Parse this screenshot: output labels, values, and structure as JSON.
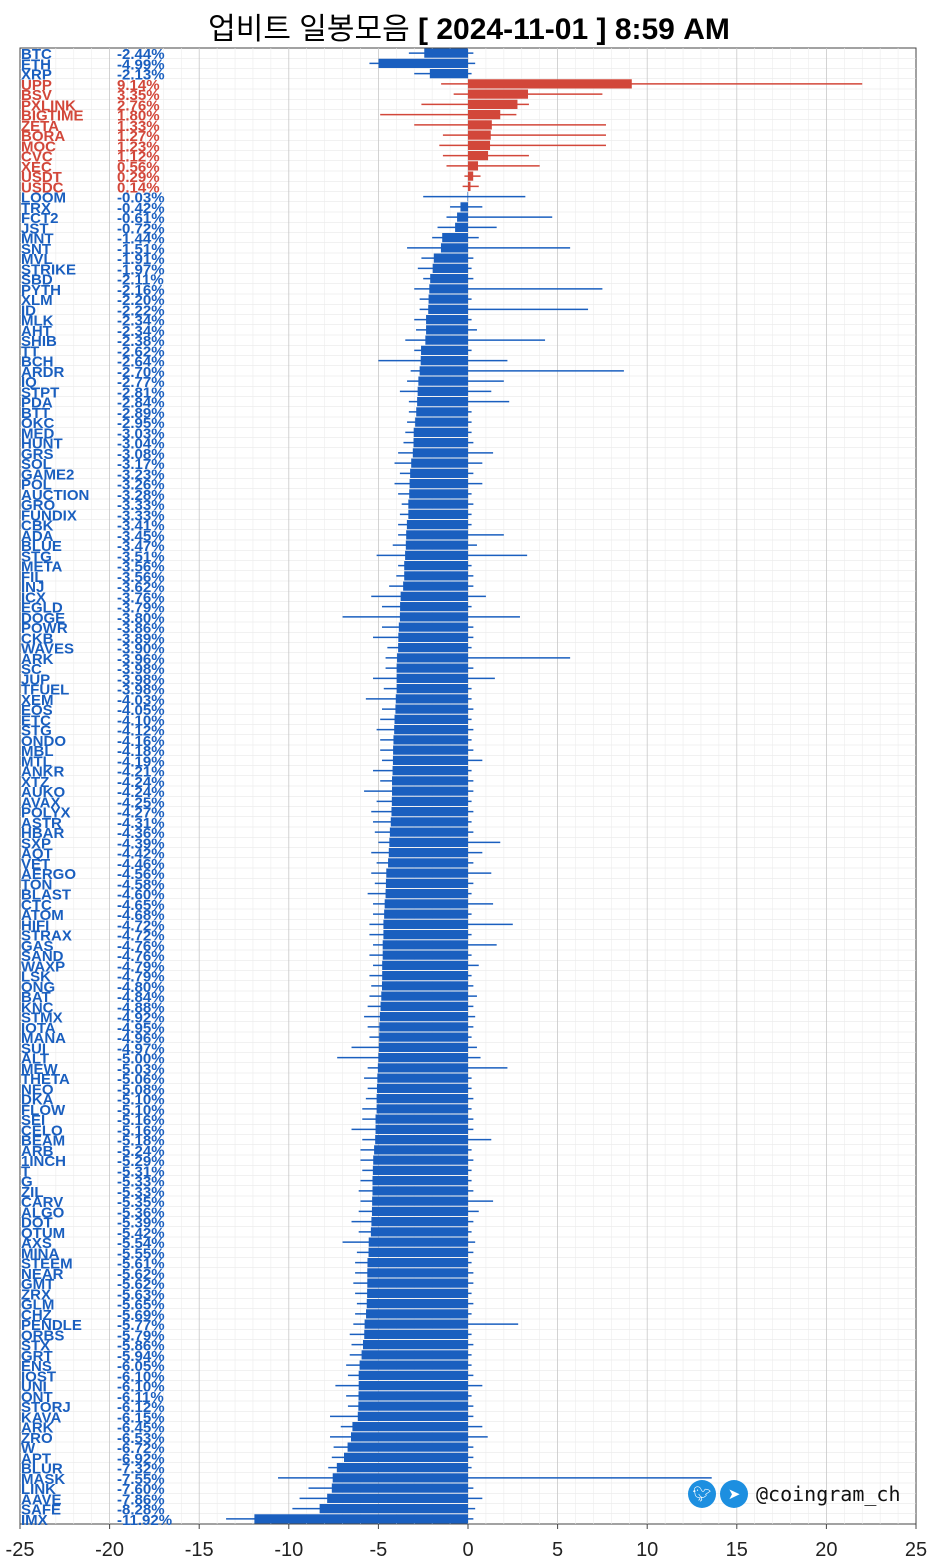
{
  "title": {
    "prefix": "업비트 일봉모음",
    "date": "[ 2024-11-01 ]  8:59 AM"
  },
  "watermark": {
    "handle": "@coingram_ch",
    "icons": [
      "twitter-icon",
      "telegram-icon"
    ]
  },
  "colors": {
    "down": "#1a5fbf",
    "up": "#d2473a"
  },
  "chart_data": {
    "type": "bar",
    "orientation": "horizontal",
    "xlim": [
      -25,
      25
    ],
    "xticks": [
      -25,
      -20,
      -15,
      -10,
      -5,
      0,
      5,
      10,
      15,
      20,
      25
    ],
    "grid": true,
    "rows": [
      {
        "name": "BTC",
        "pct": "-2.44%",
        "value": -2.44,
        "low": -3.3,
        "high": 0.3
      },
      {
        "name": "ETH",
        "pct": "-4.99%",
        "value": -4.99,
        "low": -5.5,
        "high": 0.4
      },
      {
        "name": "XRP",
        "pct": "-2.13%",
        "value": -2.13,
        "low": -3.0,
        "high": 0.2
      },
      {
        "name": "UPP",
        "pct": "9.14%",
        "value": 9.14,
        "low": -1.5,
        "high": 22.0
      },
      {
        "name": "BSV",
        "pct": "3.35%",
        "value": 3.35,
        "low": -0.8,
        "high": 7.5
      },
      {
        "name": "PXLINK",
        "pct": "2.76%",
        "value": 2.76,
        "low": -2.6,
        "high": 3.4
      },
      {
        "name": "BIGTIME",
        "pct": "1.80%",
        "value": 1.8,
        "low": -4.9,
        "high": 2.7
      },
      {
        "name": "ZETA",
        "pct": "1.33%",
        "value": 1.33,
        "low": -3.0,
        "high": 7.7
      },
      {
        "name": "BORA",
        "pct": "1.27%",
        "value": 1.27,
        "low": -1.4,
        "high": 7.7
      },
      {
        "name": "MOC",
        "pct": "1.23%",
        "value": 1.23,
        "low": -1.6,
        "high": 7.7
      },
      {
        "name": "CVC",
        "pct": "1.12%",
        "value": 1.12,
        "low": -1.4,
        "high": 3.4
      },
      {
        "name": "XEC",
        "pct": "0.56%",
        "value": 0.56,
        "low": -1.2,
        "high": 4.0
      },
      {
        "name": "USDT",
        "pct": "0.29%",
        "value": 0.29,
        "low": -0.2,
        "high": 0.7
      },
      {
        "name": "USDC",
        "pct": "0.14%",
        "value": 0.14,
        "low": -0.3,
        "high": 0.6
      },
      {
        "name": "LOOM",
        "pct": "-0.03%",
        "value": -0.03,
        "low": -2.5,
        "high": 3.2
      },
      {
        "name": "TRX",
        "pct": "-0.42%",
        "value": -0.42,
        "low": -1.0,
        "high": 0.8
      },
      {
        "name": "FCT2",
        "pct": "-0.61%",
        "value": -0.61,
        "low": -1.2,
        "high": 4.7
      },
      {
        "name": "JST",
        "pct": "-0.72%",
        "value": -0.72,
        "low": -1.7,
        "high": 1.6
      },
      {
        "name": "MNT",
        "pct": "-1.44%",
        "value": -1.44,
        "low": -2.0,
        "high": 0.6
      },
      {
        "name": "SNT",
        "pct": "-1.51%",
        "value": -1.51,
        "low": -3.4,
        "high": 5.7
      },
      {
        "name": "MVL",
        "pct": "-1.91%",
        "value": -1.91,
        "low": -2.6,
        "high": 0.3
      },
      {
        "name": "STRIKE",
        "pct": "-1.97%",
        "value": -1.97,
        "low": -2.8,
        "high": 0.2
      },
      {
        "name": "SBD",
        "pct": "-2.11%",
        "value": -2.11,
        "low": -2.5,
        "high": 0.3
      },
      {
        "name": "PYTH",
        "pct": "-2.16%",
        "value": -2.16,
        "low": -3.0,
        "high": 7.5
      },
      {
        "name": "XLM",
        "pct": "-2.20%",
        "value": -2.2,
        "low": -2.7,
        "high": 0.2
      },
      {
        "name": "ID",
        "pct": "-2.22%",
        "value": -2.22,
        "low": -2.7,
        "high": 6.7
      },
      {
        "name": "MLK",
        "pct": "-2.34%",
        "value": -2.34,
        "low": -3.0,
        "high": 0.2
      },
      {
        "name": "AHT",
        "pct": "-2.34%",
        "value": -2.34,
        "low": -2.9,
        "high": 0.5
      },
      {
        "name": "SHIB",
        "pct": "-2.38%",
        "value": -2.38,
        "low": -3.5,
        "high": 4.3
      },
      {
        "name": "TT",
        "pct": "-2.62%",
        "value": -2.62,
        "low": -3.0,
        "high": 0.2
      },
      {
        "name": "BCH",
        "pct": "-2.64%",
        "value": -2.64,
        "low": -5.0,
        "high": 2.2
      },
      {
        "name": "ARDR",
        "pct": "-2.70%",
        "value": -2.7,
        "low": -3.2,
        "high": 8.7
      },
      {
        "name": "IQ",
        "pct": "-2.77%",
        "value": -2.77,
        "low": -3.4,
        "high": 2.0
      },
      {
        "name": "STPT",
        "pct": "-2.81%",
        "value": -2.81,
        "low": -3.8,
        "high": 1.3
      },
      {
        "name": "PDA",
        "pct": "-2.84%",
        "value": -2.84,
        "low": -3.3,
        "high": 2.3
      },
      {
        "name": "BTT",
        "pct": "-2.89%",
        "value": -2.89,
        "low": -3.3,
        "high": 0.2
      },
      {
        "name": "OKC",
        "pct": "-2.95%",
        "value": -2.95,
        "low": -3.4,
        "high": 0.2
      },
      {
        "name": "MED",
        "pct": "-3.03%",
        "value": -3.03,
        "low": -3.5,
        "high": 0.2
      },
      {
        "name": "HUNT",
        "pct": "-3.04%",
        "value": -3.04,
        "low": -3.6,
        "high": 0.3
      },
      {
        "name": "GRS",
        "pct": "-3.08%",
        "value": -3.08,
        "low": -3.9,
        "high": 1.4
      },
      {
        "name": "SOL",
        "pct": "-3.17%",
        "value": -3.17,
        "low": -4.1,
        "high": 0.8
      },
      {
        "name": "GAME2",
        "pct": "-3.23%",
        "value": -3.23,
        "low": -3.8,
        "high": 0.3
      },
      {
        "name": "POL",
        "pct": "-3.26%",
        "value": -3.26,
        "low": -4.1,
        "high": 0.8
      },
      {
        "name": "AUCTION",
        "pct": "-3.28%",
        "value": -3.28,
        "low": -3.9,
        "high": 0.2
      },
      {
        "name": "GRO",
        "pct": "-3.33%",
        "value": -3.33,
        "low": -3.7,
        "high": 0.3
      },
      {
        "name": "FUNDIX",
        "pct": "-3.33%",
        "value": -3.33,
        "low": -3.8,
        "high": 0.2
      },
      {
        "name": "CBK",
        "pct": "-3.41%",
        "value": -3.41,
        "low": -3.9,
        "high": 0.2
      },
      {
        "name": "ADA",
        "pct": "-3.45%",
        "value": -3.45,
        "low": -3.9,
        "high": 2.0
      },
      {
        "name": "BLUE",
        "pct": "-3.47%",
        "value": -3.47,
        "low": -4.2,
        "high": 0.5
      },
      {
        "name": "STG",
        "pct": "-3.51%",
        "value": -3.51,
        "low": -5.1,
        "high": 3.3
      },
      {
        "name": "META",
        "pct": "-3.56%",
        "value": -3.56,
        "low": -3.9,
        "high": 0.2
      },
      {
        "name": "FIL",
        "pct": "-3.56%",
        "value": -3.56,
        "low": -4.0,
        "high": 0.3
      },
      {
        "name": "INJ",
        "pct": "-3.62%",
        "value": -3.62,
        "low": -4.4,
        "high": 0.3
      },
      {
        "name": "ICX",
        "pct": "-3.76%",
        "value": -3.76,
        "low": -5.4,
        "high": 1.0
      },
      {
        "name": "EGLD",
        "pct": "-3.79%",
        "value": -3.79,
        "low": -4.8,
        "high": 0.2
      },
      {
        "name": "DOGE",
        "pct": "-3.80%",
        "value": -3.8,
        "low": -7.0,
        "high": 2.9
      },
      {
        "name": "POWR",
        "pct": "-3.86%",
        "value": -3.86,
        "low": -4.8,
        "high": 0.3
      },
      {
        "name": "CKB",
        "pct": "-3.89%",
        "value": -3.89,
        "low": -5.3,
        "high": 0.3
      },
      {
        "name": "WAVES",
        "pct": "-3.90%",
        "value": -3.9,
        "low": -4.5,
        "high": 0.2
      },
      {
        "name": "ARK",
        "pct": "-3.96%",
        "value": -3.96,
        "low": -4.6,
        "high": 5.7
      },
      {
        "name": "SC",
        "pct": "-3.98%",
        "value": -3.98,
        "low": -4.6,
        "high": 0.3
      },
      {
        "name": "JUP",
        "pct": "-3.98%",
        "value": -3.98,
        "low": -5.3,
        "high": 1.5
      },
      {
        "name": "TFUEL",
        "pct": "-3.98%",
        "value": -3.98,
        "low": -4.7,
        "high": 0.2
      },
      {
        "name": "XEM",
        "pct": "-4.03%",
        "value": -4.03,
        "low": -5.7,
        "high": 0.2
      },
      {
        "name": "EOS",
        "pct": "-4.05%",
        "value": -4.05,
        "low": -4.8,
        "high": 0.3
      },
      {
        "name": "ETC",
        "pct": "-4.10%",
        "value": -4.1,
        "low": -4.9,
        "high": 0.2
      },
      {
        "name": "STG",
        "pct": "-4.12%",
        "value": -4.12,
        "low": -5.1,
        "high": 0.3
      },
      {
        "name": "ONDO",
        "pct": "-4.16%",
        "value": -4.16,
        "low": -4.9,
        "high": 0.2
      },
      {
        "name": "MBL",
        "pct": "-4.18%",
        "value": -4.18,
        "low": -4.9,
        "high": 0.3
      },
      {
        "name": "MTL",
        "pct": "-4.19%",
        "value": -4.19,
        "low": -4.8,
        "high": 0.8
      },
      {
        "name": "ANKR",
        "pct": "-4.21%",
        "value": -4.21,
        "low": -5.3,
        "high": 0.2
      },
      {
        "name": "XTZ",
        "pct": "-4.24%",
        "value": -4.24,
        "low": -4.9,
        "high": 0.3
      },
      {
        "name": "AUKO",
        "pct": "-4.24%",
        "value": -4.24,
        "low": -5.8,
        "high": 0.3
      },
      {
        "name": "AVAX",
        "pct": "-4.25%",
        "value": -4.25,
        "low": -5.1,
        "high": 0.2
      },
      {
        "name": "POLYX",
        "pct": "-4.27%",
        "value": -4.27,
        "low": -5.4,
        "high": 0.3
      },
      {
        "name": "ASTR",
        "pct": "-4.31%",
        "value": -4.31,
        "low": -5.3,
        "high": 0.2
      },
      {
        "name": "HBAR",
        "pct": "-4.36%",
        "value": -4.36,
        "low": -5.2,
        "high": 0.3
      },
      {
        "name": "SXP",
        "pct": "-4.39%",
        "value": -4.39,
        "low": -5.0,
        "high": 1.8
      },
      {
        "name": "AQT",
        "pct": "-4.42%",
        "value": -4.42,
        "low": -5.4,
        "high": 0.8
      },
      {
        "name": "VET",
        "pct": "-4.46%",
        "value": -4.46,
        "low": -5.1,
        "high": 0.3
      },
      {
        "name": "AERGO",
        "pct": "-4.56%",
        "value": -4.56,
        "low": -5.4,
        "high": 1.3
      },
      {
        "name": "TON",
        "pct": "-4.58%",
        "value": -4.58,
        "low": -5.2,
        "high": 0.3
      },
      {
        "name": "BLAST",
        "pct": "-4.60%",
        "value": -4.6,
        "low": -5.6,
        "high": 0.2
      },
      {
        "name": "CTC",
        "pct": "-4.65%",
        "value": -4.65,
        "low": -5.3,
        "high": 1.4
      },
      {
        "name": "ATOM",
        "pct": "-4.68%",
        "value": -4.68,
        "low": -5.3,
        "high": 0.2
      },
      {
        "name": "HIFI",
        "pct": "-4.72%",
        "value": -4.72,
        "low": -5.5,
        "high": 2.5
      },
      {
        "name": "STRAX",
        "pct": "-4.72%",
        "value": -4.72,
        "low": -5.5,
        "high": 0.2
      },
      {
        "name": "GAS",
        "pct": "-4.76%",
        "value": -4.76,
        "low": -5.3,
        "high": 1.6
      },
      {
        "name": "SAND",
        "pct": "-4.76%",
        "value": -4.76,
        "low": -5.5,
        "high": 0.2
      },
      {
        "name": "WAXP",
        "pct": "-4.79%",
        "value": -4.79,
        "low": -5.3,
        "high": 0.6
      },
      {
        "name": "LSK",
        "pct": "-4.79%",
        "value": -4.79,
        "low": -5.5,
        "high": 0.2
      },
      {
        "name": "ONG",
        "pct": "-4.80%",
        "value": -4.8,
        "low": -5.4,
        "high": 0.3
      },
      {
        "name": "BAT",
        "pct": "-4.84%",
        "value": -4.84,
        "low": -5.5,
        "high": 0.5
      },
      {
        "name": "KNC",
        "pct": "-4.88%",
        "value": -4.88,
        "low": -5.6,
        "high": 0.3
      },
      {
        "name": "STMX",
        "pct": "-4.92%",
        "value": -4.92,
        "low": -5.8,
        "high": 0.4
      },
      {
        "name": "IOTA",
        "pct": "-4.95%",
        "value": -4.95,
        "low": -5.6,
        "high": 0.3
      },
      {
        "name": "MANA",
        "pct": "-4.96%",
        "value": -4.96,
        "low": -5.5,
        "high": 0.2
      },
      {
        "name": "SUI",
        "pct": "-4.97%",
        "value": -4.97,
        "low": -6.5,
        "high": 0.5
      },
      {
        "name": "ALT",
        "pct": "-5.00%",
        "value": -5.0,
        "low": -7.3,
        "high": 0.7
      },
      {
        "name": "MEW",
        "pct": "-5.03%",
        "value": -5.03,
        "low": -5.6,
        "high": 2.2
      },
      {
        "name": "THETA",
        "pct": "-5.06%",
        "value": -5.06,
        "low": -5.8,
        "high": 0.2
      },
      {
        "name": "NEO",
        "pct": "-5.08%",
        "value": -5.08,
        "low": -5.6,
        "high": 0.2
      },
      {
        "name": "DKA",
        "pct": "-5.10%",
        "value": -5.1,
        "low": -5.7,
        "high": 0.3
      },
      {
        "name": "FLOW",
        "pct": "-5.10%",
        "value": -5.1,
        "low": -5.9,
        "high": 0.2
      },
      {
        "name": "SEI",
        "pct": "-5.16%",
        "value": -5.16,
        "low": -5.9,
        "high": 0.3
      },
      {
        "name": "CELO",
        "pct": "-5.16%",
        "value": -5.16,
        "low": -6.5,
        "high": 0.3
      },
      {
        "name": "BEAM",
        "pct": "-5.18%",
        "value": -5.18,
        "low": -5.9,
        "high": 1.3
      },
      {
        "name": "ARB",
        "pct": "-5.24%",
        "value": -5.24,
        "low": -6.0,
        "high": 0.2
      },
      {
        "name": "1INCH",
        "pct": "-5.29%",
        "value": -5.29,
        "low": -6.0,
        "high": 0.3
      },
      {
        "name": "T",
        "pct": "-5.31%",
        "value": -5.31,
        "low": -5.9,
        "high": 0.2
      },
      {
        "name": "G",
        "pct": "-5.33%",
        "value": -5.33,
        "low": -6.0,
        "high": 0.2
      },
      {
        "name": "ZIL",
        "pct": "-5.33%",
        "value": -5.33,
        "low": -6.1,
        "high": 0.3
      },
      {
        "name": "CARV",
        "pct": "-5.35%",
        "value": -5.35,
        "low": -6.0,
        "high": 1.4
      },
      {
        "name": "ALGO",
        "pct": "-5.36%",
        "value": -5.36,
        "low": -6.1,
        "high": 0.6
      },
      {
        "name": "DOT",
        "pct": "-5.39%",
        "value": -5.39,
        "low": -6.5,
        "high": 0.3
      },
      {
        "name": "QTUM",
        "pct": "-5.42%",
        "value": -5.42,
        "low": -6.1,
        "high": 0.2
      },
      {
        "name": "AXS",
        "pct": "-5.54%",
        "value": -5.54,
        "low": -7.0,
        "high": 0.4
      },
      {
        "name": "MINA",
        "pct": "-5.55%",
        "value": -5.55,
        "low": -6.2,
        "high": 0.3
      },
      {
        "name": "STEEM",
        "pct": "-5.61%",
        "value": -5.61,
        "low": -6.3,
        "high": 0.2
      },
      {
        "name": "NEAR",
        "pct": "-5.62%",
        "value": -5.62,
        "low": -6.3,
        "high": 0.3
      },
      {
        "name": "GMT",
        "pct": "-5.62%",
        "value": -5.62,
        "low": -6.4,
        "high": 0.3
      },
      {
        "name": "ZRX",
        "pct": "-5.63%",
        "value": -5.63,
        "low": -6.3,
        "high": 0.2
      },
      {
        "name": "GLM",
        "pct": "-5.65%",
        "value": -5.65,
        "low": -6.2,
        "high": 0.3
      },
      {
        "name": "CHZ",
        "pct": "-5.69%",
        "value": -5.69,
        "low": -6.3,
        "high": 0.2
      },
      {
        "name": "PENDLE",
        "pct": "-5.77%",
        "value": -5.77,
        "low": -6.4,
        "high": 2.8
      },
      {
        "name": "ORBS",
        "pct": "-5.79%",
        "value": -5.79,
        "low": -6.6,
        "high": 0.2
      },
      {
        "name": "STX",
        "pct": "-5.86%",
        "value": -5.86,
        "low": -6.5,
        "high": 0.3
      },
      {
        "name": "GRT",
        "pct": "-5.94%",
        "value": -5.94,
        "low": -6.6,
        "high": 0.2
      },
      {
        "name": "ENS",
        "pct": "-6.05%",
        "value": -6.05,
        "low": -6.8,
        "high": 0.2
      },
      {
        "name": "IOST",
        "pct": "-6.10%",
        "value": -6.1,
        "low": -6.7,
        "high": 0.3
      },
      {
        "name": "UNI",
        "pct": "-6.10%",
        "value": -6.1,
        "low": -7.4,
        "high": 0.8
      },
      {
        "name": "ONT",
        "pct": "-6.11%",
        "value": -6.11,
        "low": -6.8,
        "high": 0.2
      },
      {
        "name": "STORJ",
        "pct": "-6.12%",
        "value": -6.12,
        "low": -6.7,
        "high": 0.3
      },
      {
        "name": "KAVA",
        "pct": "-6.15%",
        "value": -6.15,
        "low": -7.7,
        "high": 0.3
      },
      {
        "name": "ARK",
        "pct": "-6.45%",
        "value": -6.45,
        "low": -7.1,
        "high": 0.8
      },
      {
        "name": "ZRO",
        "pct": "-6.53%",
        "value": -6.53,
        "low": -7.7,
        "high": 1.1
      },
      {
        "name": "W",
        "pct": "-6.72%",
        "value": -6.72,
        "low": -7.5,
        "high": 0.3
      },
      {
        "name": "APT",
        "pct": "-6.92%",
        "value": -6.92,
        "low": -7.6,
        "high": 0.3
      },
      {
        "name": "BLUR",
        "pct": "-7.32%",
        "value": -7.32,
        "low": -7.8,
        "high": 0.2
      },
      {
        "name": "MASK",
        "pct": "-7.55%",
        "value": -7.55,
        "low": -10.6,
        "high": 13.6
      },
      {
        "name": "LINK",
        "pct": "-7.60%",
        "value": -7.6,
        "low": -8.9,
        "high": 0.3
      },
      {
        "name": "AAVE",
        "pct": "-7.86%",
        "value": -7.86,
        "low": -9.4,
        "high": 0.8
      },
      {
        "name": "SAFE",
        "pct": "-8.28%",
        "value": -8.28,
        "low": -9.8,
        "high": 0.4
      },
      {
        "name": "IMX",
        "pct": "-11.92%",
        "value": -11.92,
        "low": -13.5,
        "high": 0.3
      }
    ]
  }
}
